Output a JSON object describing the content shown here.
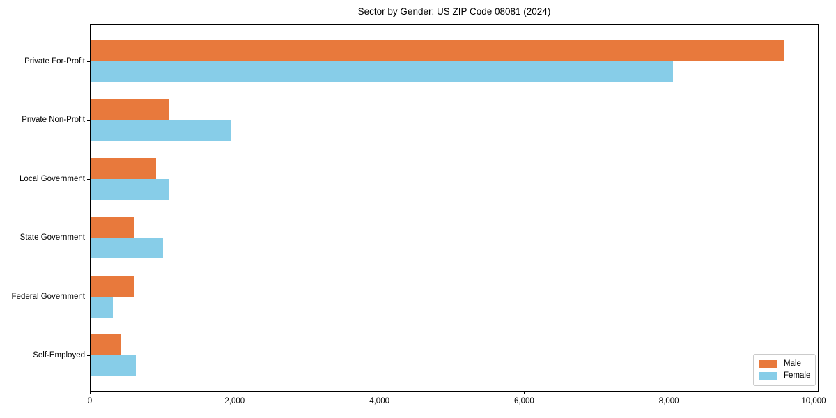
{
  "chart_data": {
    "type": "bar",
    "orientation": "horizontal",
    "title": "Sector by Gender: US ZIP Code 08081 (2024)",
    "categories": [
      "Private For-Profit",
      "Private Non-Profit",
      "Local Government",
      "State Government",
      "Federal Government",
      "Self-Employed"
    ],
    "series": [
      {
        "name": "Male",
        "color": "#E8793C",
        "values": [
          9590,
          1090,
          900,
          610,
          610,
          420
        ]
      },
      {
        "name": "Female",
        "color": "#87CDE8",
        "values": [
          8050,
          1940,
          1080,
          1000,
          310,
          630
        ]
      }
    ],
    "xlim": [
      0,
      10070
    ],
    "x_ticks": [
      0,
      2000,
      4000,
      6000,
      8000,
      10000
    ],
    "x_tick_labels": [
      "0",
      "2,000",
      "4,000",
      "6,000",
      "8,000",
      "10,000"
    ],
    "grid": false,
    "frame_color": "#000000",
    "legend": {
      "position": "lower right"
    }
  }
}
